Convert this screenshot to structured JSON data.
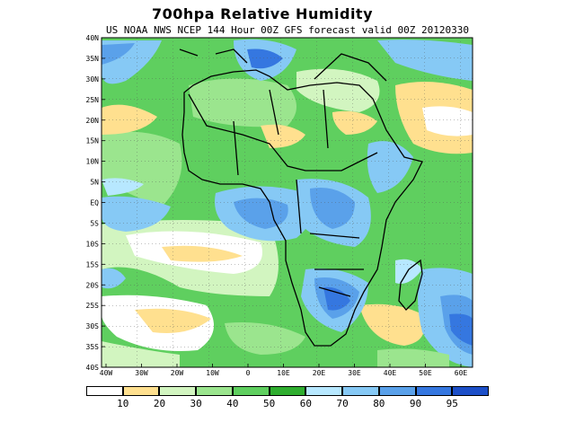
{
  "title": "700hpa Relative Humidity",
  "subtitle": "US NOAA NWS NCEP 144 Hour 00Z GFS forecast valid 00Z 20120330",
  "map": {
    "lat_labels": [
      "40N",
      "35N",
      "30N",
      "25N",
      "20N",
      "15N",
      "10N",
      "5N",
      "EQ",
      "5S",
      "10S",
      "15S",
      "20S",
      "25S",
      "30S",
      "35S",
      "40S"
    ],
    "lon_labels": [
      "40W",
      "30W",
      "20W",
      "10W",
      "0",
      "10E",
      "20E",
      "30E",
      "40E",
      "50E",
      "60E"
    ]
  },
  "colorbar": {
    "labels": [
      "10",
      "20",
      "30",
      "40",
      "50",
      "60",
      "70",
      "80",
      "90",
      "95"
    ],
    "colors": [
      "#ffffff",
      "#ffe08f",
      "#d2f5c0",
      "#9be58e",
      "#5fcf5f",
      "#2fae2f",
      "#b7e8ff",
      "#86c9f5",
      "#5aa1ea",
      "#3577e0",
      "#1c4fc8"
    ]
  },
  "palette": {
    "white": "#ffffff",
    "yellow": "#ffe08f",
    "pale_green": "#d2f5c0",
    "light_green": "#9be58e",
    "green": "#5fcf5f",
    "dark_green": "#2fae2f",
    "pale_blue": "#b7e8ff",
    "light_blue": "#86c9f5",
    "blue": "#5aa1ea",
    "dark_blue": "#3577e0",
    "navy": "#1c4fc8"
  }
}
